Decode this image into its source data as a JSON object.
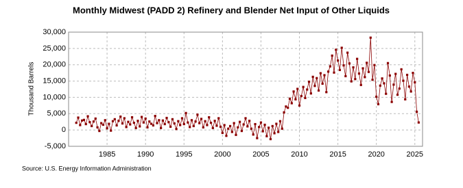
{
  "chart_data": {
    "type": "line",
    "title": "Monthly Midwest (PADD 2) Refinery and Blender Net Input of Other Liquids",
    "y_label": "Thousand Barrels",
    "source": "Source: U.S. Energy Information Administration",
    "x": [
      1981,
      1981.25,
      1981.5,
      1981.75,
      1982,
      1982.25,
      1982.5,
      1982.75,
      1983,
      1983.25,
      1983.5,
      1983.75,
      1984,
      1984.25,
      1984.5,
      1984.75,
      1985,
      1985.25,
      1985.5,
      1985.75,
      1986,
      1986.25,
      1986.5,
      1986.75,
      1987,
      1987.25,
      1987.5,
      1987.75,
      1988,
      1988.25,
      1988.5,
      1988.75,
      1989,
      1989.25,
      1989.5,
      1989.75,
      1990,
      1990.25,
      1990.5,
      1990.75,
      1991,
      1991.25,
      1991.5,
      1991.75,
      1992,
      1992.25,
      1992.5,
      1992.75,
      1993,
      1993.25,
      1993.5,
      1993.75,
      1994,
      1994.25,
      1994.5,
      1994.75,
      1995,
      1995.25,
      1995.5,
      1995.75,
      1996,
      1996.25,
      1996.5,
      1996.75,
      1997,
      1997.25,
      1997.5,
      1997.75,
      1998,
      1998.25,
      1998.5,
      1998.75,
      1999,
      1999.25,
      1999.5,
      1999.75,
      2000,
      2000.25,
      2000.5,
      2000.75,
      2001,
      2001.25,
      2001.5,
      2001.75,
      2002,
      2002.25,
      2002.5,
      2002.75,
      2003,
      2003.25,
      2003.5,
      2003.75,
      2004,
      2004.25,
      2004.5,
      2004.75,
      2005,
      2005.25,
      2005.5,
      2005.75,
      2006,
      2006.25,
      2006.5,
      2006.75,
      2007,
      2007.25,
      2007.5,
      2007.75,
      2008,
      2008.25,
      2008.5,
      2008.75,
      2009,
      2009.25,
      2009.5,
      2009.75,
      2010,
      2010.25,
      2010.5,
      2010.75,
      2011,
      2011.25,
      2011.5,
      2011.75,
      2012,
      2012.25,
      2012.5,
      2012.75,
      2013,
      2013.25,
      2013.5,
      2013.75,
      2014,
      2014.25,
      2014.5,
      2014.75,
      2015,
      2015.25,
      2015.5,
      2015.75,
      2016,
      2016.25,
      2016.5,
      2016.75,
      2017,
      2017.25,
      2017.5,
      2017.75,
      2018,
      2018.25,
      2018.5,
      2018.75,
      2019,
      2019.25,
      2019.5,
      2019.75,
      2020,
      2020.25,
      2020.5,
      2020.75,
      2021,
      2021.25,
      2021.5,
      2021.75,
      2022,
      2022.25,
      2022.5,
      2022.75,
      2023,
      2023.25,
      2023.5,
      2023.75,
      2024,
      2024.25,
      2024.5,
      2024.75,
      2025,
      2025.25,
      2025.5
    ],
    "series": [
      {
        "color": "#8b0000",
        "values": [
          2200,
          3800,
          1500,
          2900,
          3100,
          1800,
          4200,
          2400,
          1200,
          2600,
          3500,
          800,
          -300,
          2100,
          1600,
          3000,
          500,
          1900,
          -200,
          2700,
          3300,
          1400,
          2800,
          4100,
          2000,
          3600,
          900,
          2500,
          1700,
          3900,
          2200,
          600,
          2800,
          1100,
          4000,
          2300,
          3500,
          800,
          2600,
          1900,
          1400,
          4300,
          2100,
          3000,
          600,
          2900,
          1800,
          3700,
          2400,
          1000,
          3300,
          2000,
          300,
          2700,
          1500,
          3600,
          1800,
          5200,
          2300,
          900,
          3000,
          1200,
          2600,
          4700,
          2100,
          3400,
          800,
          2700,
          1500,
          3900,
          2200,
          600,
          2800,
          1300,
          3600,
          1000,
          -900,
          1500,
          -1800,
          400,
          1200,
          -600,
          2100,
          -1500,
          800,
          2500,
          -300,
          1700,
          3600,
          1100,
          2800,
          400,
          -1400,
          1800,
          -2500,
          900,
          2300,
          -400,
          1600,
          -1900,
          700,
          -2800,
          1200,
          -1000,
          1900,
          -600,
          2700,
          400,
          5400,
          7200,
          6800,
          9600,
          8200,
          11800,
          9400,
          12600,
          7500,
          10400,
          13200,
          9800,
          12400,
          14800,
          11200,
          16300,
          13500,
          15900,
          12100,
          17400,
          14200,
          16800,
          11600,
          17900,
          19500,
          22800,
          17600,
          24600,
          21300,
          18400,
          25200,
          19800,
          16500,
          23700,
          20400,
          14900,
          19200,
          15600,
          21800,
          17300,
          13800,
          18900,
          16200,
          20600,
          17800,
          28300,
          15400,
          19900,
          10200,
          7900,
          13600,
          15800,
          14300,
          11100,
          20500,
          16700,
          8600,
          13900,
          17200,
          10800,
          12700,
          18600,
          15100,
          9400,
          16900,
          13300,
          11800,
          17500,
          14600,
          5600,
          2300
        ]
      }
    ],
    "xlim": [
      1980,
      2026
    ],
    "xticks": [
      1985,
      1990,
      1995,
      2000,
      2005,
      2010,
      2015,
      2020,
      2025
    ],
    "ylim": [
      -5000,
      30000
    ],
    "yticks": [
      {
        "value": -5000,
        "label": "-5,000"
      },
      0,
      {
        "value": 5000,
        "label": "5,000"
      },
      {
        "value": 10000,
        "label": "10,000"
      },
      {
        "value": 15000,
        "label": "15,000"
      },
      {
        "value": 20000,
        "label": "20,000"
      },
      {
        "value": 25000,
        "label": "25,000"
      },
      {
        "value": 30000,
        "label": "30,000"
      }
    ],
    "grid": true
  }
}
